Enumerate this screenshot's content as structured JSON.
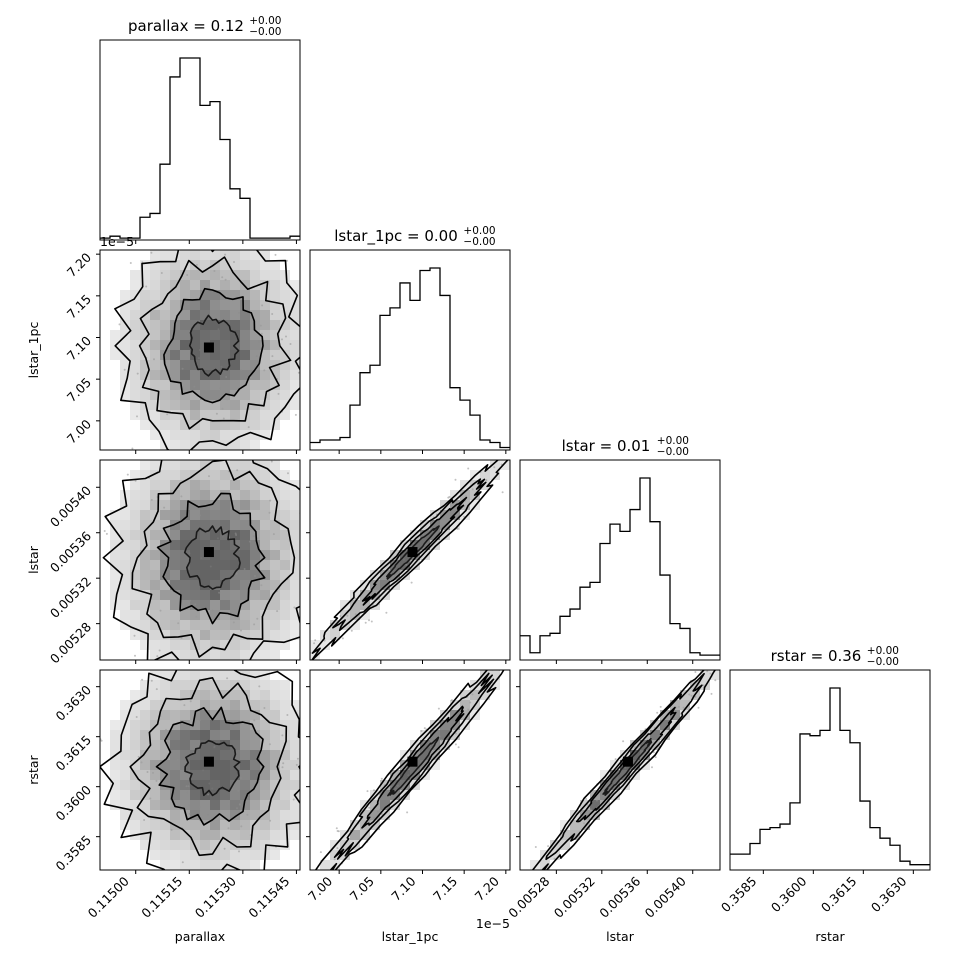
{
  "chart_data": {
    "type": "corner",
    "parameters": [
      "parallax",
      "lstar_1pc",
      "lstar",
      "rstar"
    ],
    "titles": [
      {
        "param": "parallax",
        "prefix": "parallax = ",
        "value": "0.12",
        "up": "+0.00",
        "down": "−0.00"
      },
      {
        "param": "lstar_1pc",
        "prefix": "lstar_1pc = ",
        "value": "0.00",
        "up": "+0.00",
        "down": "−0.00"
      },
      {
        "param": "lstar",
        "prefix": "lstar = ",
        "value": "0.01",
        "up": "+0.00",
        "down": "−0.00"
      },
      {
        "param": "rstar",
        "prefix": "rstar = ",
        "value": "0.36",
        "up": "+0.00",
        "down": "−0.00"
      }
    ],
    "axes": {
      "parallax": {
        "range": [
          0.1149,
          0.11546
        ],
        "ticks": [
          0.115,
          0.11515,
          0.1153,
          0.11545
        ],
        "tick_labels": [
          "0.11500",
          "0.11515",
          "0.11530",
          "0.11545"
        ],
        "label": "parallax"
      },
      "lstar_1pc": {
        "range": [
          6.965,
          7.205
        ],
        "ticks": [
          7.0,
          7.05,
          7.1,
          7.15,
          7.2
        ],
        "tick_labels": [
          "7.00",
          "7.05",
          "7.10",
          "7.15",
          "7.20"
        ],
        "label": "lstar_1pc",
        "offset_text": "1e−5"
      },
      "lstar": {
        "range": [
          0.005248,
          0.005424
        ],
        "ticks": [
          0.00528,
          0.00532,
          0.00536,
          0.0054
        ],
        "tick_labels": [
          "0.00528",
          "0.00532",
          "0.00536",
          "0.00540"
        ],
        "label": "lstar"
      },
      "rstar": {
        "range": [
          0.3575,
          0.3635
        ],
        "ticks": [
          0.3585,
          0.36,
          0.3615,
          0.363
        ],
        "tick_labels": [
          "0.3585",
          "0.3600",
          "0.3615",
          "0.3630"
        ],
        "label": "rstar"
      }
    },
    "histograms": {
      "parallax": {
        "edges_start": 0.1149,
        "bin_width": 2.8e-05,
        "counts": [
          1,
          2,
          1,
          1,
          12,
          14,
          40,
          86,
          96,
          96,
          71,
          73,
          53,
          27,
          22,
          1,
          1,
          1,
          1,
          2
        ]
      },
      "lstar_1pc": {
        "edges_start": 6.965,
        "bin_width": 0.012,
        "counts": [
          3,
          4,
          4,
          5,
          18,
          31,
          34,
          54,
          57,
          67,
          60,
          72,
          73,
          62,
          25,
          20,
          14,
          4,
          3,
          1
        ]
      },
      "lstar": {
        "edges_start": 0.005248,
        "bin_width": 8.8e-06,
        "counts": [
          10,
          3,
          10,
          11,
          18,
          21,
          30,
          32,
          48,
          56,
          53,
          62,
          75,
          57,
          35,
          15,
          13,
          3,
          2,
          2
        ]
      },
      "rstar": {
        "edges_start": 0.3575,
        "bin_width": 0.0003,
        "counts": [
          9,
          9,
          15,
          23,
          24,
          26,
          38,
          77,
          76,
          79,
          103,
          79,
          72,
          39,
          24,
          18,
          14,
          5,
          3,
          3
        ]
      }
    },
    "pair_contours": [
      {
        "x": "parallax",
        "y": "lstar_1pc",
        "median": [
          0.115205,
          7.088
        ],
        "center": [
          0.115215,
          7.09
        ],
        "spread": [
          0.00013,
          0.065
        ],
        "correlation": 0.0
      },
      {
        "x": "parallax",
        "y": "lstar",
        "median": [
          0.115205,
          0.005343
        ],
        "center": [
          0.115215,
          0.005338
        ],
        "spread": [
          0.00014,
          5.2e-05
        ],
        "correlation": 0.0
      },
      {
        "x": "lstar_1pc",
        "y": "lstar",
        "median": [
          7.088,
          0.005343
        ],
        "center": [
          7.088,
          0.005343
        ],
        "spread": [
          0.058,
          4.3e-05
        ],
        "correlation": 0.97
      },
      {
        "x": "parallax",
        "y": "rstar",
        "median": [
          0.115205,
          0.36075
        ],
        "center": [
          0.115215,
          0.3606
        ],
        "spread": [
          0.00014,
          0.0016
        ],
        "correlation": 0.0
      },
      {
        "x": "lstar_1pc",
        "y": "rstar",
        "median": [
          7.088,
          0.36075
        ],
        "center": [
          7.09,
          0.3606
        ],
        "spread": [
          0.058,
          0.0017
        ],
        "correlation": 0.97
      },
      {
        "x": "lstar",
        "y": "rstar",
        "median": [
          0.005343,
          0.36075
        ],
        "center": [
          0.005343,
          0.3606
        ],
        "spread": [
          4.3e-05,
          0.0017
        ],
        "correlation": 0.98
      }
    ],
    "contour_levels": [
      0.5,
      1.0,
      1.5,
      2.0
    ],
    "colors": {
      "line": "#000000",
      "shade_dark": "#666666",
      "shade_light": "#dcdcdc",
      "points": "#9a9a9a"
    }
  }
}
